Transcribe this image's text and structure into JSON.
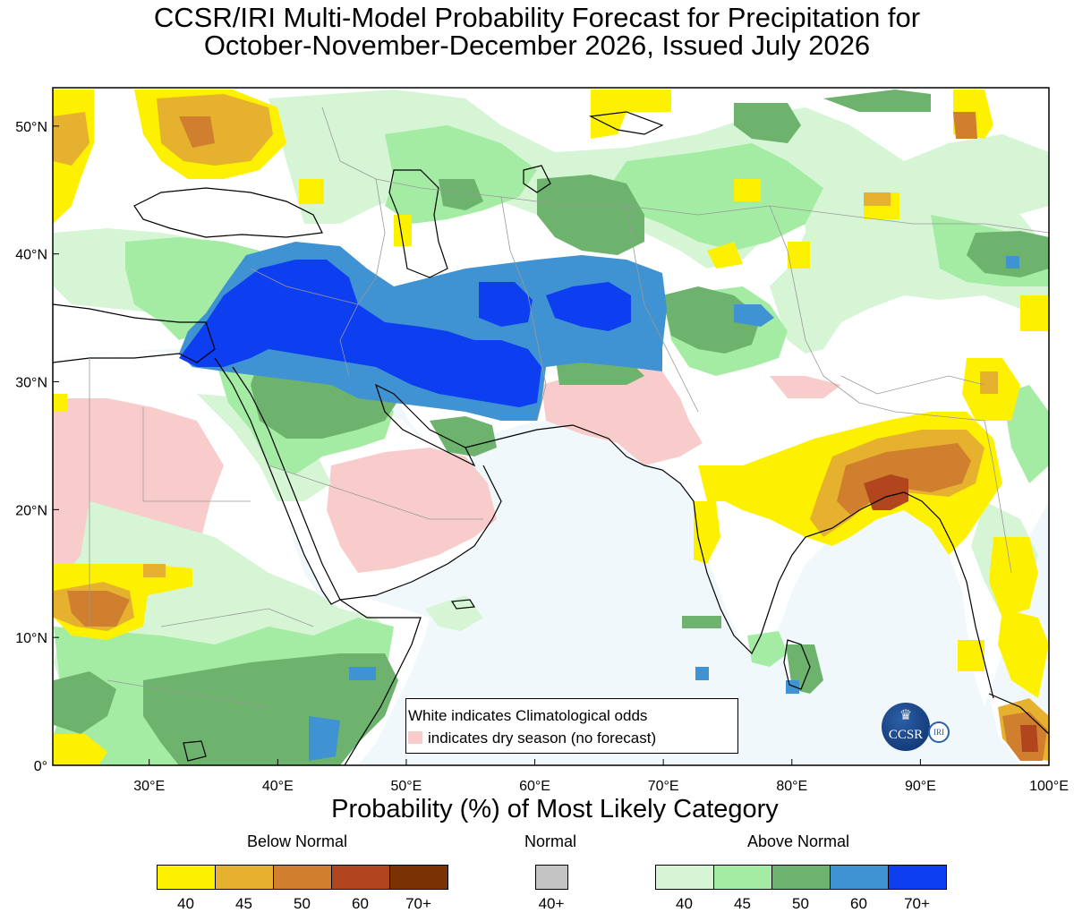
{
  "title": {
    "line1": "CCSR/IRI Multi-Model Probability Forecast for Precipitation for",
    "line2": "October-November-December 2026, Issued July 2026"
  },
  "map": {
    "lon_range": [
      22.5,
      100
    ],
    "lat_range": [
      0,
      53
    ],
    "x_ticks": [
      "30°E",
      "40°E",
      "50°E",
      "60°E",
      "70°E",
      "80°E",
      "90°E",
      "100°E"
    ],
    "y_ticks": [
      "50°N",
      "40°N",
      "30°N",
      "20°N",
      "10°N",
      "0°"
    ],
    "ocean_color": "#f0f8fc",
    "land_white_note": "White indicates Climatological odds",
    "dry_season_note": "indicates dry season (no forecast)",
    "dry_color": "#f9cccc"
  },
  "xlabel": "Probability (%) of Most Likely Category",
  "legend": {
    "below": {
      "label": "Below Normal",
      "items": [
        {
          "value": "40",
          "color": "#fdf100"
        },
        {
          "value": "45",
          "color": "#e6b12e"
        },
        {
          "value": "50",
          "color": "#d07f2f"
        },
        {
          "value": "60",
          "color": "#b0451e"
        },
        {
          "value": "70+",
          "color": "#7a3104"
        }
      ]
    },
    "normal": {
      "label": "Normal",
      "items": [
        {
          "value": "40+",
          "color": "#c4c4c4"
        }
      ]
    },
    "above": {
      "label": "Above Normal",
      "items": [
        {
          "value": "40",
          "color": "#d5f5d5"
        },
        {
          "value": "45",
          "color": "#a4eca4"
        },
        {
          "value": "50",
          "color": "#6db36d"
        },
        {
          "value": "60",
          "color": "#3f93d2"
        },
        {
          "value": "70+",
          "color": "#0d3ff0"
        }
      ]
    }
  },
  "logo": {
    "ccsr": "CCSR",
    "iri": "IRI"
  }
}
